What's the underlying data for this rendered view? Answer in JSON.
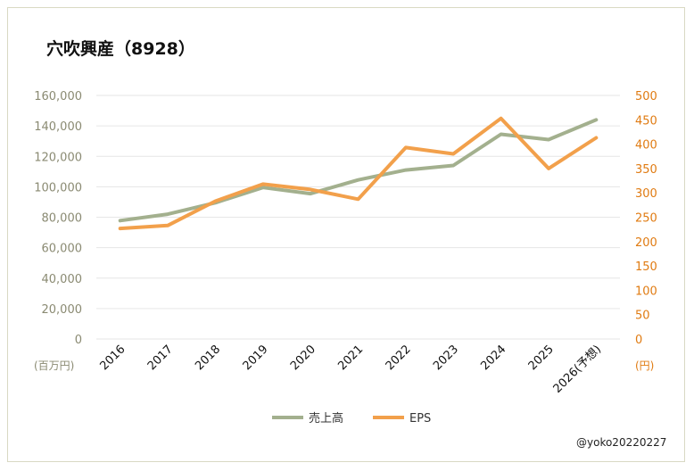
{
  "chart_data": {
    "type": "line",
    "title": "穴吹興産（8928）",
    "categories": [
      "2016",
      "2017",
      "2018",
      "2019",
      "2020",
      "2021",
      "2022",
      "2023",
      "2024",
      "2025",
      "2026(予想)"
    ],
    "series": [
      {
        "name": "売上高",
        "axis": "left",
        "color": "#a3b08e",
        "values": [
          77800,
          82000,
          89500,
          99500,
          95500,
          104500,
          111000,
          114000,
          134500,
          131000,
          144000
        ]
      },
      {
        "name": "EPS",
        "axis": "right",
        "color": "#f2a04b",
        "values": [
          227,
          233,
          283,
          318,
          307,
          287,
          393,
          380,
          453,
          350,
          413
        ]
      }
    ],
    "y_left": {
      "min": 0,
      "max": 160000,
      "step": 20000,
      "unit": "(百万円)",
      "ticks": [
        "0",
        "20,000",
        "40,000",
        "60,000",
        "80,000",
        "100,000",
        "120,000",
        "140,000",
        "160,000"
      ]
    },
    "y_right": {
      "min": 0,
      "max": 500,
      "step": 50,
      "unit": "(円)",
      "ticks": [
        "0",
        "50",
        "100",
        "150",
        "200",
        "250",
        "300",
        "350",
        "400",
        "450",
        "500"
      ]
    },
    "grid": true,
    "legend": "bottom-center"
  },
  "credit": "@yoko20220227"
}
